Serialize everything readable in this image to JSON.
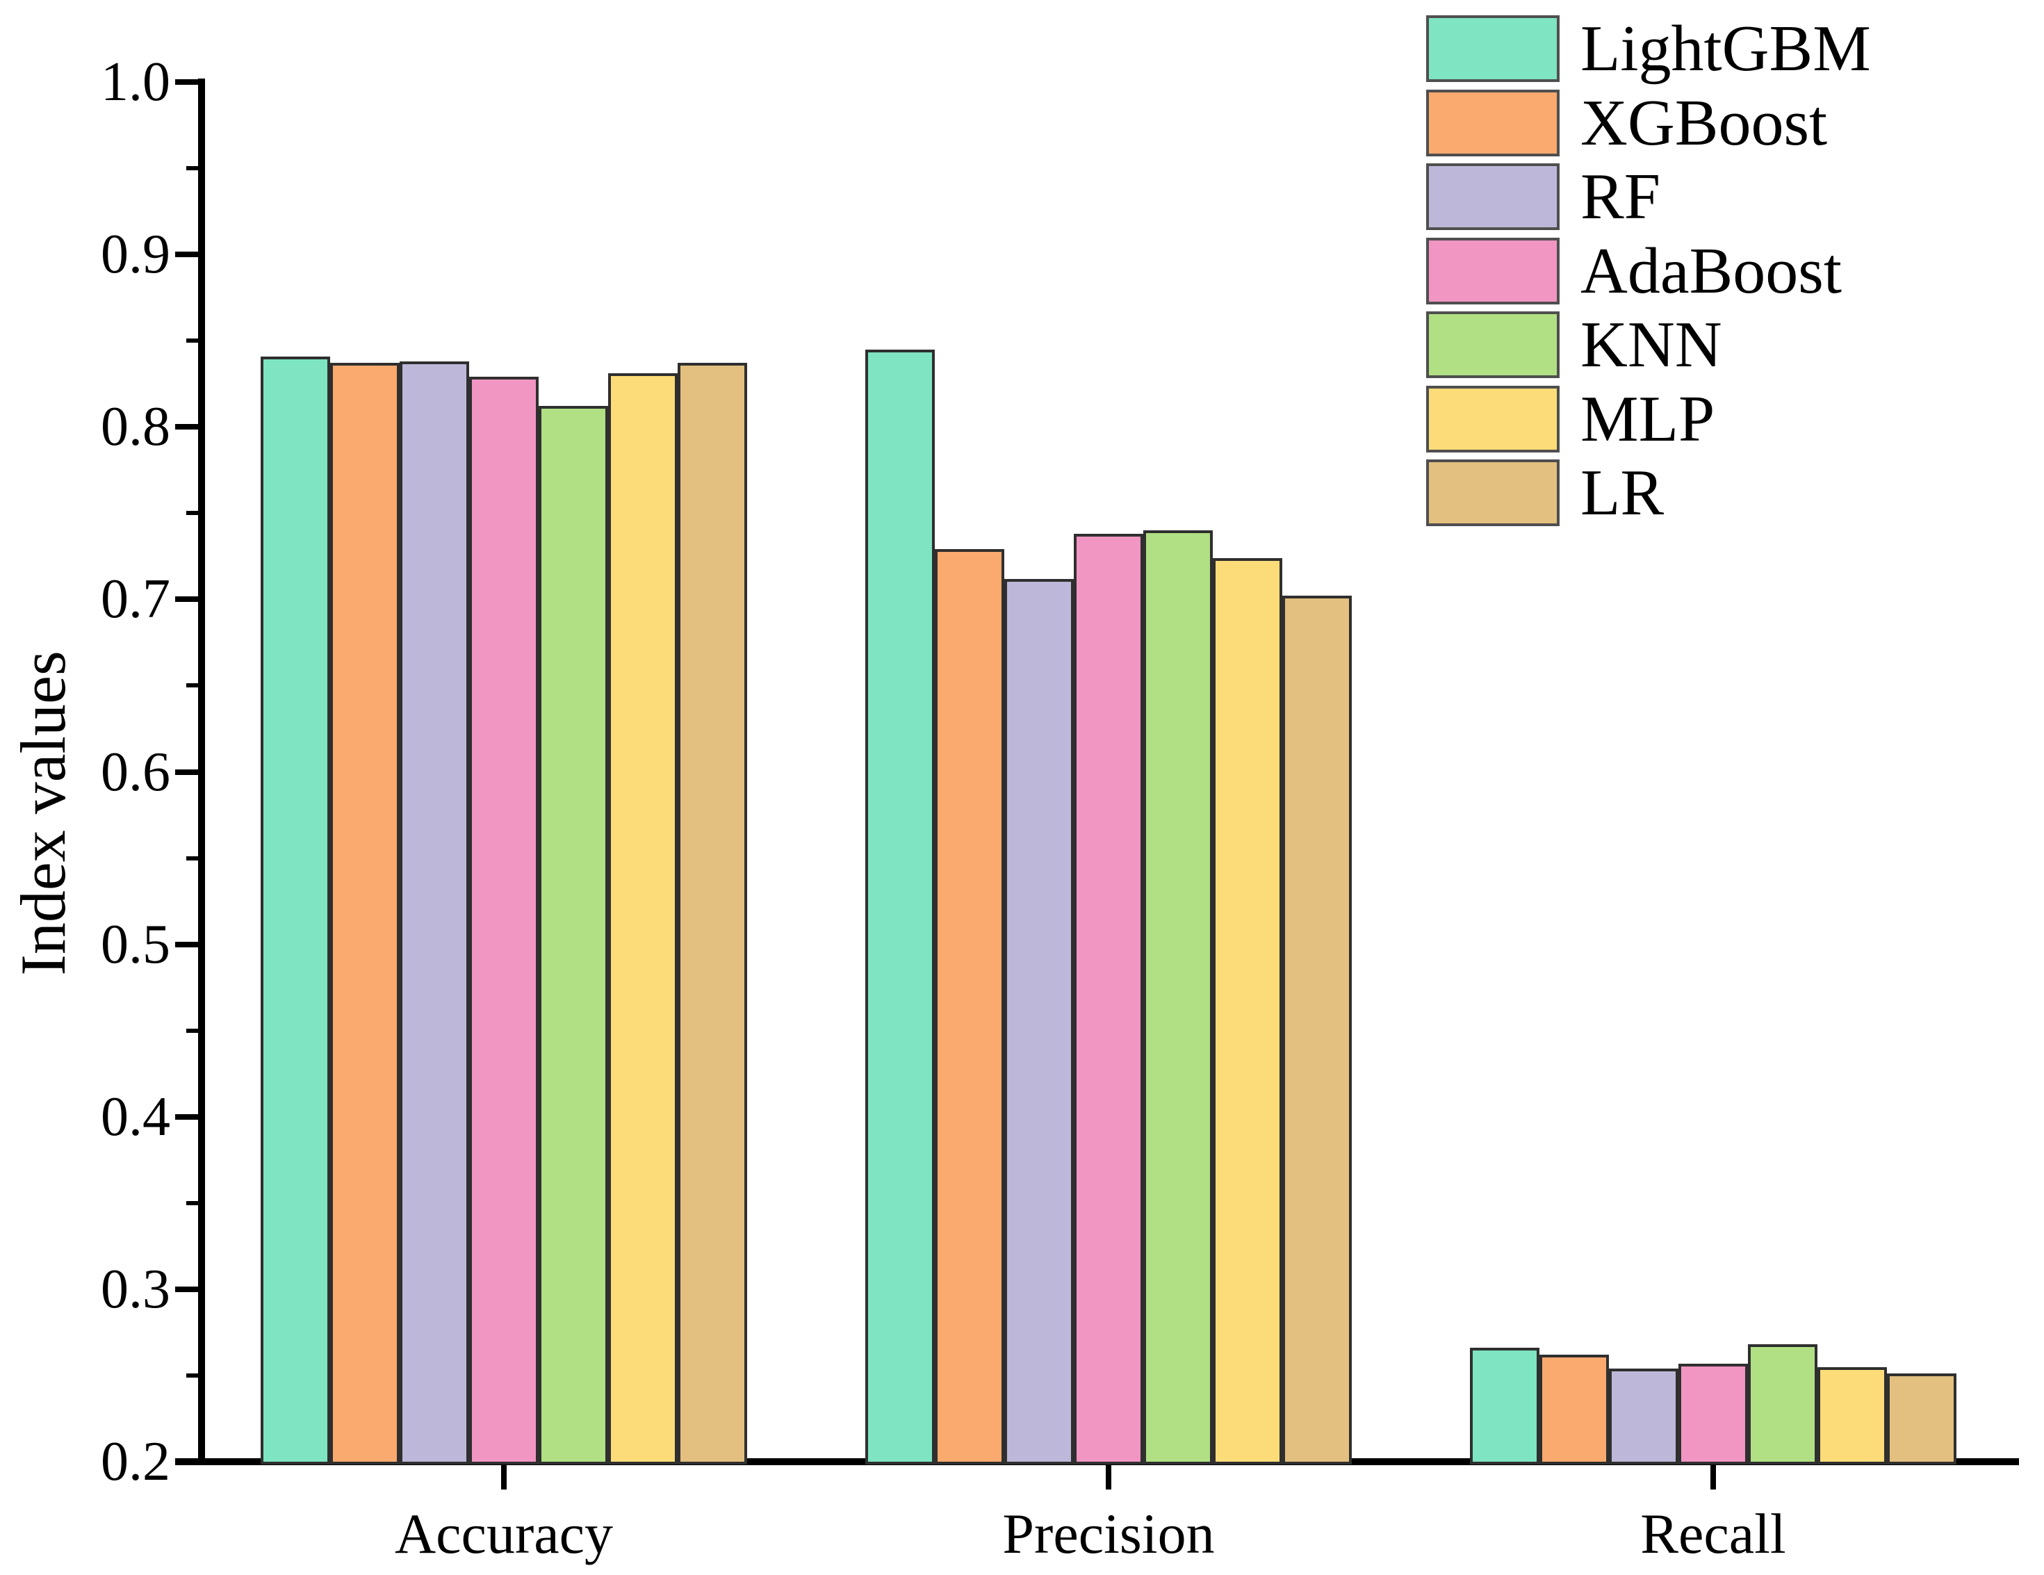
{
  "chart_data": {
    "type": "bar",
    "title": "",
    "xlabel": "",
    "ylabel": "Index values",
    "ylim": [
      0.2,
      1.0
    ],
    "y_major_step": 0.1,
    "y_minor_step": 0.05,
    "grid": false,
    "legend_position": "top-right",
    "categories": [
      "Accuracy",
      "Precision",
      "Recall"
    ],
    "series": [
      {
        "name": "LightGBM",
        "color": "#7ee4c2",
        "values": [
          0.841,
          0.845,
          0.266
        ]
      },
      {
        "name": "XGBoost",
        "color": "#faaa6e",
        "values": [
          0.837,
          0.729,
          0.262
        ]
      },
      {
        "name": "RF",
        "color": "#bdb8d9",
        "values": [
          0.838,
          0.712,
          0.254
        ]
      },
      {
        "name": "AdaBoost",
        "color": "#f195c2",
        "values": [
          0.829,
          0.738,
          0.257
        ]
      },
      {
        "name": "KNN",
        "color": "#b1e084",
        "values": [
          0.812,
          0.74,
          0.268
        ]
      },
      {
        "name": "MLP",
        "color": "#fcdc78",
        "values": [
          0.831,
          0.724,
          0.255
        ]
      },
      {
        "name": "LR",
        "color": "#e3c07f",
        "values": [
          0.837,
          0.702,
          0.251
        ]
      }
    ],
    "y_tick_labels": [
      "1.0",
      "0.9",
      "0.8",
      "0.7",
      "0.6",
      "0.5",
      "0.4",
      "0.3",
      "0.2"
    ]
  }
}
